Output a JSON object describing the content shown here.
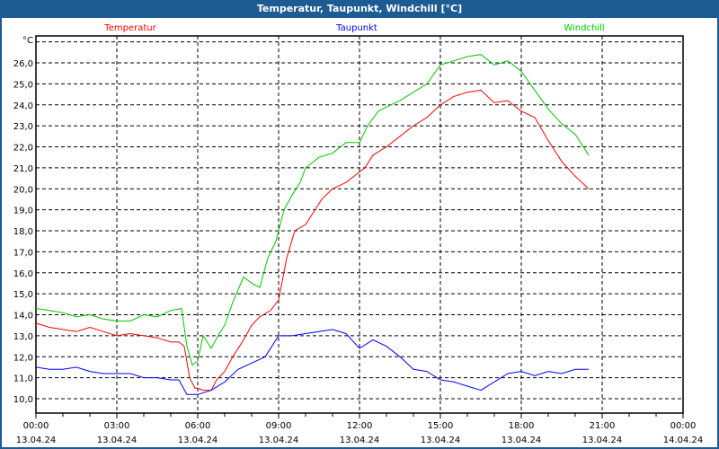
{
  "window": {
    "title": "Temperatur, Taupunkt, Windchill [°C]"
  },
  "chart_data": {
    "type": "line",
    "title": "Temperatur, Taupunkt, Windchill [°C]",
    "ylabel": "°C",
    "xlabel": "",
    "xlim": [
      0,
      24
    ],
    "ylim": [
      9.3,
      27.3
    ],
    "grid": true,
    "legend_placement": "top",
    "y_ticks": [
      10,
      11,
      12,
      13,
      14,
      15,
      16,
      17,
      18,
      19,
      20,
      21,
      22,
      23,
      24,
      25,
      26
    ],
    "y_tick_labels": [
      "10,0",
      "11,0",
      "12,0",
      "13,0",
      "14,0",
      "15,0",
      "16,0",
      "17,0",
      "18,0",
      "19,0",
      "20,0",
      "21,0",
      "22,0",
      "23,0",
      "24,0",
      "25,0",
      "26,0"
    ],
    "x_ticks": [
      0,
      3,
      6,
      9,
      12,
      15,
      18,
      21,
      24
    ],
    "x_tick_labels": [
      [
        "00:00",
        "13.04.24"
      ],
      [
        "03:00",
        "13.04.24"
      ],
      [
        "06:00",
        "13.04.24"
      ],
      [
        "09:00",
        "13.04.24"
      ],
      [
        "12:00",
        "13.04.24"
      ],
      [
        "15:00",
        "13.04.24"
      ],
      [
        "18:00",
        "13.04.24"
      ],
      [
        "21:00",
        "13.04.24"
      ],
      [
        "00:00",
        "14.04.24"
      ]
    ],
    "series": [
      {
        "name": "Temperatur",
        "color": "#ff0000",
        "x": [
          0,
          0.5,
          1,
          1.5,
          2,
          2.5,
          3,
          3.5,
          4,
          4.5,
          5,
          5.3,
          5.5,
          5.7,
          5.9,
          6,
          6.2,
          6.5,
          6.7,
          7,
          7.3,
          7.7,
          8,
          8.3,
          8.7,
          9,
          9.3,
          9.6,
          10,
          10.3,
          10.6,
          11,
          11.5,
          12,
          12.2,
          12.5,
          13,
          13.5,
          14,
          14.5,
          15,
          15.5,
          16,
          16.5,
          17,
          17.5,
          18,
          18.5,
          19,
          19.5,
          20,
          20.5
        ],
        "y": [
          13.6,
          13.4,
          13.3,
          13.2,
          13.4,
          13.2,
          13.0,
          13.1,
          13.0,
          12.9,
          12.7,
          12.7,
          12.5,
          11.0,
          10.5,
          10.5,
          10.4,
          10.4,
          10.9,
          11.3,
          12.0,
          12.8,
          13.5,
          13.9,
          14.2,
          14.7,
          16.7,
          18.0,
          18.3,
          18.9,
          19.5,
          20.0,
          20.3,
          20.8,
          21.0,
          21.6,
          22.0,
          22.5,
          23.0,
          23.4,
          24.0,
          24.4,
          24.6,
          24.7,
          24.1,
          24.2,
          23.7,
          23.4,
          22.3,
          21.3,
          20.6,
          20.0
        ]
      },
      {
        "name": "Taupunkt",
        "color": "#0000ff",
        "x": [
          0,
          0.5,
          1,
          1.5,
          2,
          2.5,
          3,
          3.5,
          4,
          4.5,
          5,
          5.3,
          5.6,
          6,
          6.5,
          7,
          7.5,
          8,
          8.5,
          9,
          9.5,
          10,
          10.5,
          11,
          11.5,
          12,
          12.5,
          13,
          13.5,
          14,
          14.5,
          15,
          15.5,
          16,
          16.5,
          17,
          17.5,
          18,
          18.5,
          19,
          19.5,
          20,
          20.5
        ],
        "y": [
          11.5,
          11.4,
          11.4,
          11.5,
          11.3,
          11.2,
          11.2,
          11.2,
          11.0,
          11.0,
          10.9,
          10.9,
          10.2,
          10.2,
          10.4,
          10.8,
          11.4,
          11.7,
          12.0,
          13.0,
          13.0,
          13.1,
          13.2,
          13.3,
          13.1,
          12.4,
          12.8,
          12.5,
          12.0,
          11.4,
          11.3,
          10.9,
          10.8,
          10.6,
          10.4,
          10.8,
          11.2,
          11.3,
          11.1,
          11.3,
          11.2,
          11.4,
          11.4
        ]
      },
      {
        "name": "Windchill",
        "color": "#00c800",
        "x": [
          0,
          0.5,
          1,
          1.5,
          2,
          2.5,
          3,
          3.5,
          4,
          4.5,
          5,
          5.4,
          5.6,
          5.8,
          6,
          6.2,
          6.5,
          6.8,
          7,
          7.3,
          7.7,
          8,
          8.3,
          8.6,
          8.9,
          9.2,
          9.5,
          9.8,
          10,
          10.5,
          11,
          11.5,
          12,
          12.3,
          12.7,
          13,
          13.5,
          14,
          14.5,
          15,
          15.5,
          16,
          16.5,
          17,
          17.5,
          18,
          18.5,
          19,
          19.5,
          20,
          20.5
        ],
        "y": [
          14.3,
          14.2,
          14.1,
          13.9,
          14.0,
          13.8,
          13.7,
          13.7,
          14.0,
          13.9,
          14.2,
          14.3,
          12.5,
          11.6,
          11.8,
          13.0,
          12.4,
          13.1,
          13.5,
          14.6,
          15.8,
          15.5,
          15.3,
          16.7,
          17.5,
          19.0,
          19.7,
          20.3,
          21.0,
          21.5,
          21.7,
          22.2,
          22.2,
          23.0,
          23.7,
          23.9,
          24.2,
          24.6,
          25.0,
          25.9,
          26.1,
          26.3,
          26.4,
          25.9,
          26.1,
          25.6,
          24.7,
          23.8,
          23.1,
          22.6,
          21.6
        ]
      }
    ]
  }
}
